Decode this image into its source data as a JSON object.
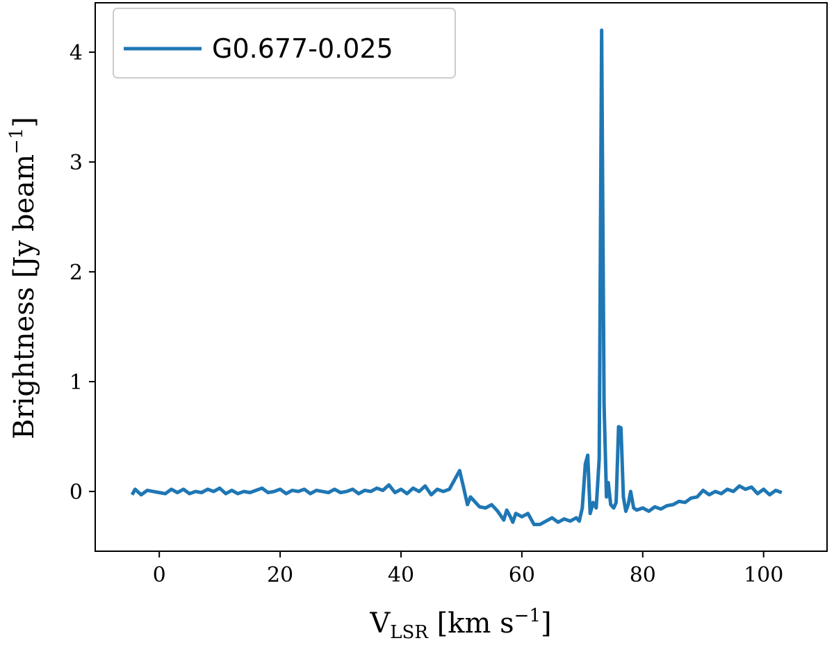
{
  "chart_data": {
    "type": "line",
    "xlabel": {
      "main": "V",
      "sub": "LSR",
      "rest": " [km s",
      "sup": "−1",
      "end": "]"
    },
    "ylabel": {
      "main": "Brightness [Jy beam",
      "sup": "−1",
      "end": "]"
    },
    "xlim": [
      -10.6,
      110.5
    ],
    "ylim": [
      -0.544,
      4.45
    ],
    "xticks": [
      0,
      20,
      40,
      60,
      80,
      100
    ],
    "yticks": [
      0,
      1,
      2,
      3,
      4
    ],
    "legend": "upper left",
    "x": [
      -4.5,
      -4,
      -3,
      -2,
      -1,
      0,
      1,
      2,
      3,
      4,
      5,
      6,
      7,
      8,
      9,
      10,
      11,
      12,
      13,
      14,
      15,
      16,
      17,
      18,
      19,
      20,
      21,
      22,
      23,
      24,
      25,
      26,
      27,
      28,
      29,
      30,
      31,
      32,
      33,
      34,
      35,
      36,
      37,
      38,
      39,
      40,
      41,
      42,
      43,
      44,
      45,
      46,
      47,
      48,
      49,
      49.7,
      50.3,
      51,
      51.5,
      52,
      53,
      54,
      55,
      56,
      57,
      57.5,
      58,
      58.5,
      59,
      60,
      61,
      62,
      63,
      64,
      65,
      66,
      67,
      68,
      69,
      69.5,
      70,
      70.5,
      70.9,
      71.3,
      71.8,
      72.3,
      72.8,
      73.2,
      73.6,
      74,
      74.3,
      74.7,
      75.2,
      75.6,
      76,
      76.4,
      76.8,
      77.2,
      77.6,
      78,
      78.5,
      79,
      80,
      81,
      82,
      83,
      84,
      85,
      86,
      87,
      88,
      89,
      90,
      91,
      92,
      93,
      94,
      95,
      96,
      97,
      98,
      99,
      100,
      101,
      102,
      103
    ],
    "series": [
      {
        "name": "G0.677-0.025",
        "color": "#1f77b4",
        "values": [
          -0.03,
          0.02,
          -0.03,
          0.01,
          0.0,
          -0.01,
          -0.02,
          0.02,
          -0.01,
          0.02,
          -0.02,
          0.0,
          -0.01,
          0.02,
          0.0,
          0.03,
          -0.02,
          0.01,
          -0.02,
          0.0,
          -0.01,
          0.01,
          0.03,
          -0.01,
          0.0,
          0.02,
          -0.02,
          0.01,
          0.0,
          0.02,
          -0.02,
          0.01,
          0.0,
          -0.01,
          0.02,
          -0.01,
          0.0,
          0.02,
          -0.02,
          0.01,
          0.0,
          0.03,
          0.01,
          0.06,
          -0.01,
          0.02,
          -0.02,
          0.03,
          0.0,
          0.05,
          -0.03,
          0.02,
          0.0,
          0.02,
          0.12,
          0.19,
          0.05,
          -0.12,
          -0.05,
          -0.08,
          -0.14,
          -0.15,
          -0.12,
          -0.18,
          -0.26,
          -0.17,
          -0.22,
          -0.28,
          -0.2,
          -0.23,
          -0.2,
          -0.3,
          -0.3,
          -0.27,
          -0.24,
          -0.28,
          -0.25,
          -0.27,
          -0.24,
          -0.27,
          -0.15,
          0.25,
          0.33,
          -0.2,
          -0.1,
          -0.15,
          0.3,
          4.2,
          0.8,
          -0.05,
          0.08,
          -0.12,
          -0.15,
          -0.1,
          0.59,
          0.58,
          -0.05,
          -0.18,
          -0.12,
          0.0,
          -0.15,
          -0.17,
          -0.15,
          -0.18,
          -0.14,
          -0.16,
          -0.13,
          -0.12,
          -0.09,
          -0.1,
          -0.06,
          -0.05,
          0.01,
          -0.03,
          0.0,
          -0.02,
          0.02,
          0.0,
          0.05,
          0.02,
          0.04,
          -0.02,
          0.02,
          -0.03,
          0.01,
          -0.01
        ]
      }
    ]
  }
}
